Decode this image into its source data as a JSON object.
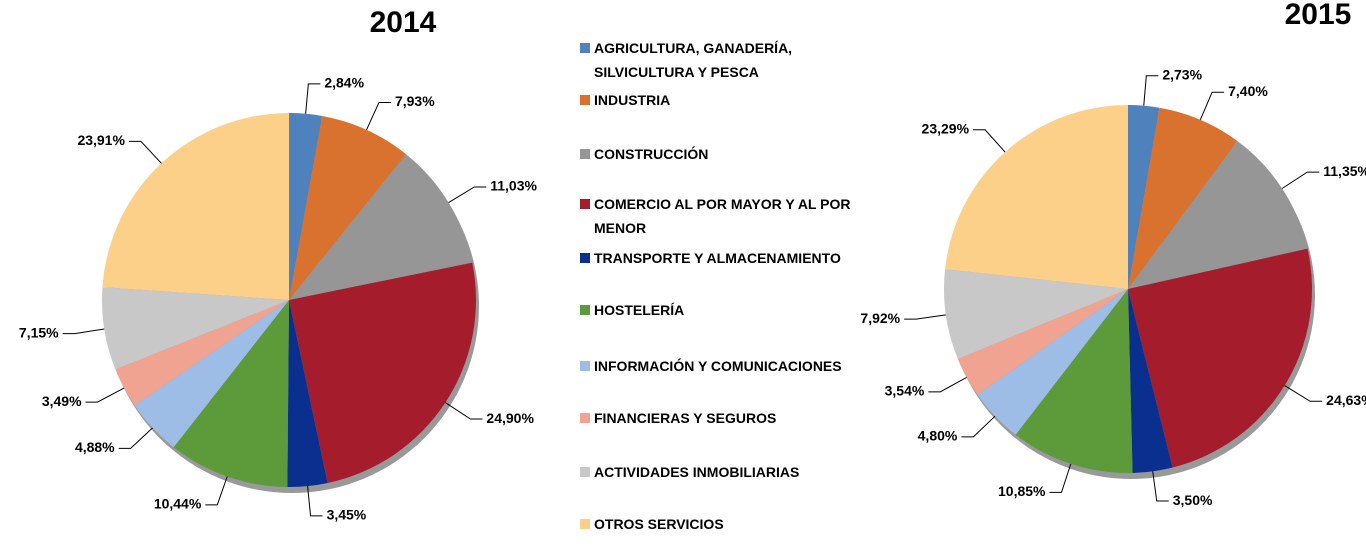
{
  "chart_data": [
    {
      "type": "pie",
      "title": "2014",
      "categories": [
        "AGRICULTURA, GANADERÍA, SILVICULTURA Y PESCA",
        "INDUSTRIA",
        "CONSTRUCCIÓN",
        "COMERCIO AL POR MAYOR Y AL POR MENOR",
        "TRANSPORTE Y ALMACENAMIENTO",
        "HOSTELERÍA",
        "INFORMACIÓN Y COMUNICACIONES",
        "FINANCIERAS Y SEGUROS",
        "ACTIVIDADES INMOBILIARIAS",
        "OTROS SERVICIOS"
      ],
      "colors": [
        "#4f81bd",
        "#d9722e",
        "#969696",
        "#a51d2d",
        "#0b2f8f",
        "#5c9a3a",
        "#9dbde6",
        "#f0a390",
        "#c8c8c8",
        "#fcd088"
      ],
      "values": [
        2.84,
        7.93,
        11.03,
        24.9,
        3.45,
        10.44,
        4.88,
        3.49,
        7.15,
        23.91
      ],
      "value_labels": [
        "2,84%",
        "7,93%",
        "11,03%",
        "24,90%",
        "3,45%",
        "10,44%",
        "4,88%",
        "3,49%",
        "7,15%",
        "23,91%"
      ]
    },
    {
      "type": "pie",
      "title": "2015",
      "values": [
        2.73,
        7.4,
        11.35,
        24.63,
        3.5,
        10.85,
        4.8,
        3.54,
        7.92,
        23.29
      ],
      "value_labels": [
        "2,73%",
        "7,40%",
        "11,35%",
        "24,63%",
        "3,50%",
        "10,85%",
        "4,80%",
        "3,54%",
        "7,92%",
        "23,29%"
      ]
    }
  ]
}
